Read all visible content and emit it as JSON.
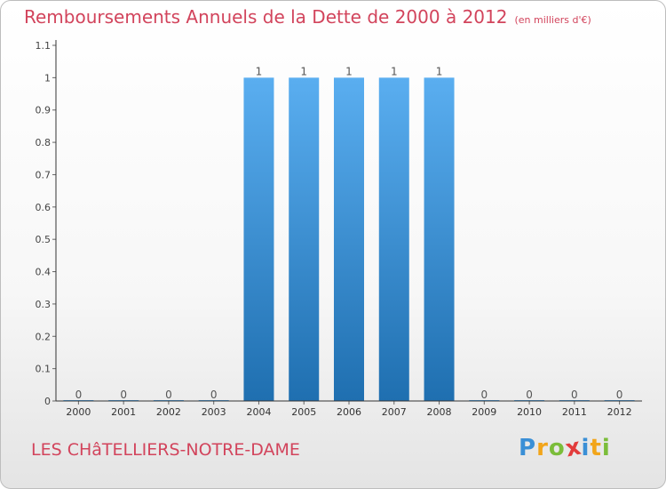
{
  "header": {
    "title": "Remboursements Annuels de la Dette de 2000 à 2012",
    "unit": "(en milliers d'€)"
  },
  "footer": {
    "commune": "LES CHâTELLIERS-NOTRE-DAME",
    "logo_letters": [
      "P",
      "r",
      "o",
      "x",
      "i",
      "t",
      "i"
    ],
    "logo_colors": [
      "#3a8fd6",
      "#f2a51a",
      "#7bbd3a",
      "#e23b3b",
      "#3a8fd6",
      "#f2a51a",
      "#7bbd3a"
    ]
  },
  "colors": {
    "bar_top": "#5aaef0",
    "bar_bottom": "#1f6fb0",
    "axis": "#333333",
    "grid_tick": "#666666"
  },
  "chart_data": {
    "type": "bar",
    "title": "Remboursements Annuels de la Dette de 2000 à 2012",
    "xlabel": "",
    "ylabel": "",
    "categories": [
      "2000",
      "2001",
      "2002",
      "2003",
      "2004",
      "2005",
      "2006",
      "2007",
      "2008",
      "2009",
      "2010",
      "2011",
      "2012"
    ],
    "values": [
      0,
      0,
      0,
      0,
      1,
      1,
      1,
      1,
      1,
      0,
      0,
      0,
      0
    ],
    "value_labels": [
      "0",
      "0",
      "0",
      "0",
      "1",
      "1",
      "1",
      "1",
      "1",
      "0",
      "0",
      "0",
      "0"
    ],
    "y_ticks": [
      0,
      0.1,
      0.2,
      0.3,
      0.4,
      0.5,
      0.6,
      0.7,
      0.8,
      0.9,
      1,
      1.1
    ],
    "y_tick_labels": [
      "0",
      "0.1",
      "0.2",
      "0.3",
      "0.4",
      "0.5",
      "0.6",
      "0.7",
      "0.8",
      "0.9",
      "1",
      "1.1"
    ],
    "ylim": [
      0,
      1.1
    ],
    "grid": false,
    "legend": "none"
  }
}
